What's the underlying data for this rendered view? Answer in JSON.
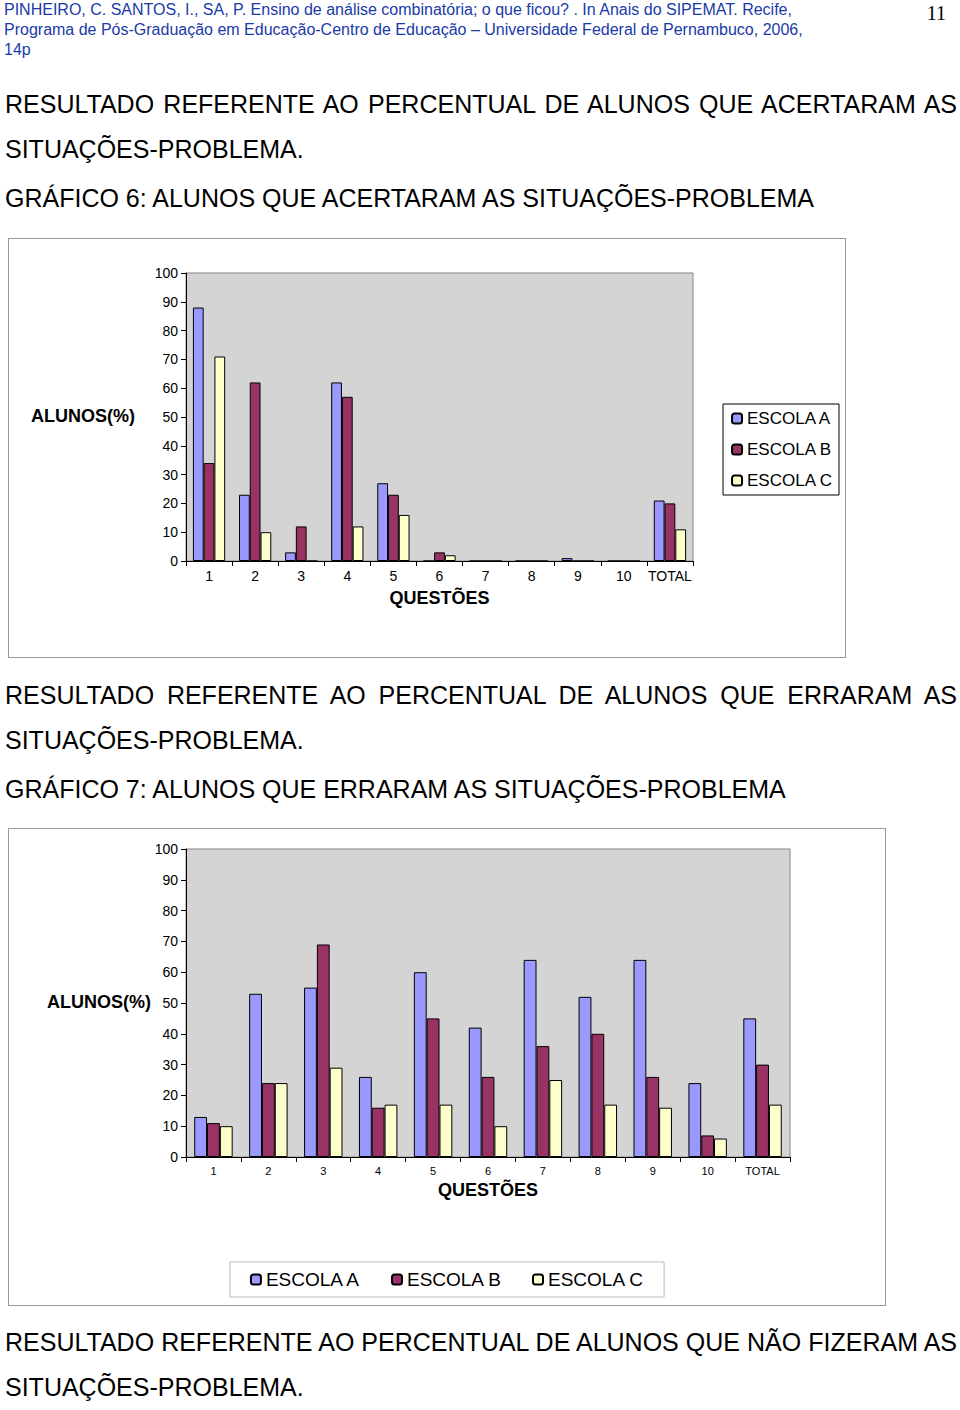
{
  "header": {
    "lines": [
      "PINHEIRO, C. SANTOS, I., SA, P. Ensino de análise combinatória; o que ficou? . In Anais do SIPEMAT. Recife,",
      "Programa de Pós-Graduação em Educação-Centro de Educação – Universidade Federal de Pernambuco, 2006,",
      "14p"
    ],
    "page_number": 11
  },
  "chart_data": [
    {
      "type": "bar",
      "heading": "RESULTADO REFERENTE AO PERCENTUAL DE ALUNOS QUE ACERTARAM AS SITUAÇÕES-PROBLEMA.",
      "title": "GRÁFICO 6: ALUNOS QUE ACERTARAM AS SITUAÇÕES-PROBLEMA",
      "x_label": "QUESTÕES",
      "y_label": "ALUNOS(%)",
      "categories": [
        "1",
        "2",
        "3",
        "4",
        "5",
        "6",
        "7",
        "8",
        "9",
        "10",
        "TOTAL"
      ],
      "series": [
        {
          "name": "ESCOLA A",
          "color": "#9999ff",
          "values": [
            88,
            23,
            3,
            62,
            27,
            0,
            0,
            0,
            1,
            0,
            21
          ]
        },
        {
          "name": "ESCOLA B",
          "color": "#993366",
          "values": [
            34,
            62,
            12,
            57,
            23,
            3,
            0,
            0,
            0,
            0,
            20
          ]
        },
        {
          "name": "ESCOLA C",
          "color": "#ffffcc",
          "values": [
            71,
            10,
            0,
            12,
            16,
            2,
            0,
            0,
            0,
            0,
            11
          ]
        }
      ],
      "ylim": [
        0,
        100
      ],
      "yticks": [
        0,
        10,
        20,
        30,
        40,
        50,
        60,
        70,
        80,
        90,
        100
      ],
      "grid": false,
      "legend": "right"
    },
    {
      "type": "bar",
      "heading": "RESULTADO REFERENTE AO PERCENTUAL DE ALUNOS QUE ERRARAM AS SITUAÇÕES-PROBLEMA.",
      "title": "GRÁFICO 7: ALUNOS QUE ERRARAM AS SITUAÇÕES-PROBLEMA",
      "x_label": "QUESTÕES",
      "y_label": "ALUNOS(%)",
      "categories": [
        "1",
        "2",
        "3",
        "4",
        "5",
        "6",
        "7",
        "8",
        "9",
        "10",
        "TOTAL"
      ],
      "series": [
        {
          "name": "ESCOLA A",
          "color": "#9999ff",
          "values": [
            13,
            53,
            55,
            26,
            60,
            42,
            64,
            52,
            64,
            24,
            45
          ]
        },
        {
          "name": "ESCOLA B",
          "color": "#993366",
          "values": [
            11,
            24,
            69,
            16,
            45,
            26,
            36,
            40,
            26,
            7,
            30
          ]
        },
        {
          "name": "ESCOLA C",
          "color": "#ffffcc",
          "values": [
            10,
            24,
            29,
            17,
            17,
            10,
            25,
            17,
            16,
            6,
            17
          ]
        }
      ],
      "ylim": [
        0,
        100
      ],
      "yticks": [
        0,
        10,
        20,
        30,
        40,
        50,
        60,
        70,
        80,
        90,
        100
      ],
      "grid": false,
      "legend": "bottom"
    }
  ],
  "closing_heading": "RESULTADO REFERENTE AO PERCENTUAL DE ALUNOS QUE NÃO FIZERAM AS SITUAÇÕES-PROBLEMA."
}
